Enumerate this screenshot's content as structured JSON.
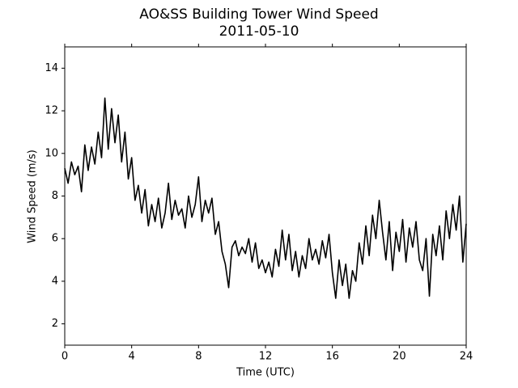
{
  "chart_data": {
    "type": "line",
    "title": "AO&SS Building Tower Wind Speed",
    "subtitle": "2011-05-10",
    "xlabel": "Time (UTC)",
    "ylabel": "Wind Speed (m/s)",
    "xlim": [
      0,
      24
    ],
    "xticks": [
      0,
      4,
      8,
      12,
      16,
      20,
      24
    ],
    "ylim": [
      1,
      15
    ],
    "yticks": [
      2,
      4,
      6,
      8,
      10,
      12,
      14
    ],
    "x": [
      0,
      0.2,
      0.4,
      0.6,
      0.8,
      1,
      1.2,
      1.4,
      1.6,
      1.8,
      2,
      2.2,
      2.4,
      2.6,
      2.8,
      3,
      3.2,
      3.4,
      3.6,
      3.8,
      4,
      4.2,
      4.4,
      4.6,
      4.8,
      5,
      5.2,
      5.4,
      5.6,
      5.8,
      6,
      6.2,
      6.4,
      6.6,
      6.8,
      7,
      7.2,
      7.4,
      7.6,
      7.8,
      8,
      8.2,
      8.4,
      8.6,
      8.8,
      9,
      9.2,
      9.4,
      9.6,
      9.8,
      10,
      10.2,
      10.4,
      10.6,
      10.8,
      11,
      11.2,
      11.4,
      11.6,
      11.8,
      12,
      12.2,
      12.4,
      12.6,
      12.8,
      13,
      13.2,
      13.4,
      13.6,
      13.8,
      14,
      14.2,
      14.4,
      14.6,
      14.8,
      15,
      15.2,
      15.4,
      15.6,
      15.8,
      16,
      16.2,
      16.4,
      16.6,
      16.8,
      17,
      17.2,
      17.4,
      17.6,
      17.8,
      18,
      18.2,
      18.4,
      18.6,
      18.8,
      19,
      19.2,
      19.4,
      19.6,
      19.8,
      20,
      20.2,
      20.4,
      20.6,
      20.8,
      21,
      21.2,
      21.4,
      21.6,
      21.8,
      22,
      22.2,
      22.4,
      22.6,
      22.8,
      23,
      23.2,
      23.4,
      23.6,
      23.8,
      24
    ],
    "series": [
      {
        "color": "#000000",
        "values": [
          9.3,
          8.6,
          9.6,
          9.0,
          9.4,
          8.2,
          10.4,
          9.2,
          10.3,
          9.5,
          11.0,
          9.8,
          12.6,
          10.2,
          12.1,
          10.5,
          11.8,
          9.6,
          11.0,
          8.8,
          9.8,
          7.8,
          8.5,
          7.2,
          8.3,
          6.6,
          7.6,
          6.8,
          7.9,
          6.5,
          7.2,
          8.6,
          6.9,
          7.8,
          7.1,
          7.4,
          6.5,
          8.0,
          7.0,
          7.6,
          8.9,
          6.8,
          7.8,
          7.2,
          7.9,
          6.2,
          6.8,
          5.4,
          4.8,
          3.7,
          5.6,
          5.9,
          5.2,
          5.6,
          5.3,
          6.0,
          4.9,
          5.8,
          4.6,
          5.0,
          4.4,
          4.9,
          4.2,
          5.5,
          4.7,
          6.4,
          5.0,
          6.2,
          4.5,
          5.4,
          4.2,
          5.2,
          4.6,
          6.0,
          5.0,
          5.5,
          4.8,
          5.9,
          5.1,
          6.2,
          4.4,
          3.2,
          5.0,
          3.8,
          4.8,
          3.2,
          4.5,
          4.0,
          5.8,
          4.8,
          6.6,
          5.2,
          7.1,
          6.0,
          7.8,
          6.3,
          5.0,
          6.8,
          4.5,
          6.3,
          5.4,
          6.9,
          4.9,
          6.5,
          5.6,
          6.8,
          5.0,
          4.5,
          6.0,
          3.3,
          6.2,
          5.2,
          6.6,
          5.0,
          7.3,
          6.0,
          7.6,
          6.4,
          8.0,
          4.9,
          6.7
        ]
      }
    ]
  }
}
